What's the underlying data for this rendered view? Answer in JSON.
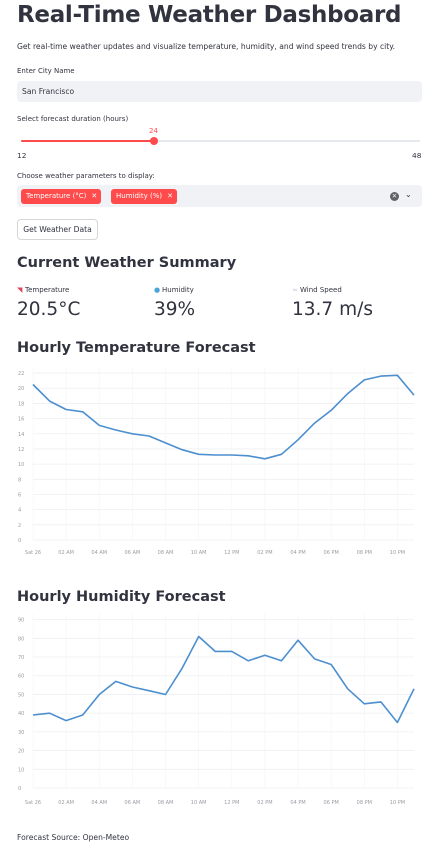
{
  "page": {
    "title": "Real-Time Weather Dashboard",
    "subtitle": "Get real-time weather updates and visualize temperature, humidity, and wind speed trends by city."
  },
  "city_input": {
    "label": "Enter City Name",
    "value": "San Francisco"
  },
  "forecast_slider": {
    "label": "Select forecast duration (hours)",
    "value": 24,
    "min": 12,
    "max": 48
  },
  "parameters": {
    "label": "Choose weather parameters to display:",
    "selected": [
      "Temperature (°C)",
      "Humidity (%)"
    ]
  },
  "get_data_button": "Get Weather Data",
  "summary": {
    "heading": "Current Weather Summary",
    "metrics": [
      {
        "label": "Temperature",
        "value": "20.5°C",
        "icon": "thermometer-icon"
      },
      {
        "label": "Humidity",
        "value": "39%",
        "icon": "droplet-icon"
      },
      {
        "label": "Wind Speed",
        "value": "13.7 m/s",
        "icon": "wind-icon"
      }
    ]
  },
  "colors": {
    "accent": "#ff4b4b",
    "line": "#4c8fcf"
  },
  "chart_data": [
    {
      "type": "line",
      "title": "Hourly Temperature Forecast",
      "x_labels": [
        "Sat 26",
        "02 AM",
        "04 AM",
        "06 AM",
        "08 AM",
        "10 AM",
        "12 PM",
        "02 PM",
        "04 PM",
        "06 PM",
        "08 PM",
        "10 PM"
      ],
      "y_ticks": [
        0,
        2,
        4,
        6,
        8,
        10,
        12,
        14,
        16,
        18,
        20,
        22
      ],
      "ylim": [
        0,
        22.8
      ],
      "values": [
        20.5,
        18.3,
        17.2,
        16.9,
        15.1,
        14.5,
        14.0,
        13.7,
        12.8,
        11.9,
        11.3,
        11.2,
        11.2,
        11.1,
        10.7,
        11.3,
        13.2,
        15.4,
        17.1,
        19.3,
        21.1,
        21.6,
        21.7,
        19.1
      ],
      "grid": true
    },
    {
      "type": "line",
      "title": "Hourly Humidity Forecast",
      "x_labels": [
        "Sat 26",
        "02 AM",
        "04 AM",
        "06 AM",
        "08 AM",
        "10 AM",
        "12 PM",
        "02 PM",
        "04 PM",
        "06 PM",
        "08 PM",
        "10 PM"
      ],
      "y_ticks": [
        0,
        10,
        20,
        30,
        40,
        50,
        60,
        70,
        80,
        90
      ],
      "ylim": [
        0,
        93
      ],
      "values": [
        39,
        40,
        36,
        39,
        50,
        57,
        54,
        52,
        50,
        64,
        81,
        73,
        73,
        68,
        71,
        68,
        79,
        69,
        66,
        53,
        45,
        46,
        35,
        53
      ],
      "grid": true
    }
  ],
  "footer": "Forecast Source: Open-Meteo"
}
